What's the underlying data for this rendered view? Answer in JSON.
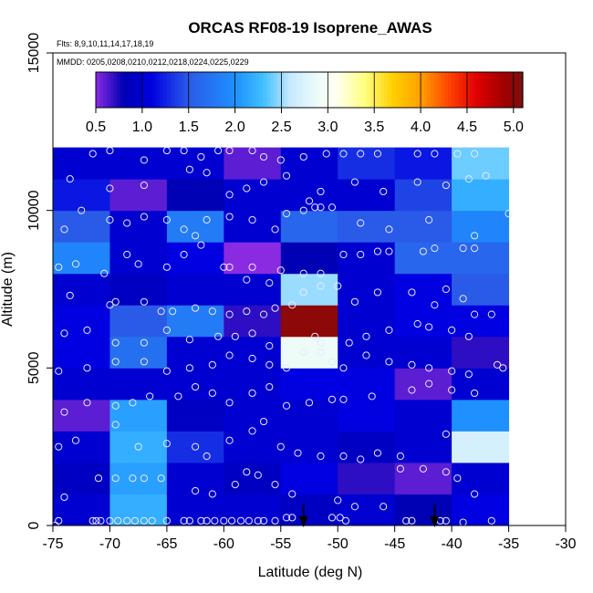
{
  "chart_data": {
    "type": "heatmap",
    "title": "ORCAS RF08-19 Isoprene_AWAS",
    "flights_note": "Flts: 8,9,10,11,14,17,18,19",
    "dates_note": "MMDD: 0205,0208,0210,0212,0218,0224,0225,0229",
    "xlabel": "Latitude (deg N)",
    "ylabel": "Altitude (m)",
    "xlim": [
      -75,
      -30
    ],
    "ylim": [
      0,
      15000
    ],
    "xticks": [
      -75,
      -70,
      -65,
      -60,
      -55,
      -50,
      -45,
      -40,
      -35,
      -30
    ],
    "yticks": [
      0,
      5000,
      10000,
      15000
    ],
    "x_edges": [
      -75,
      -70,
      -65,
      -60,
      -55,
      -50,
      -45,
      -40,
      -35
    ],
    "y_edges": [
      0,
      1000,
      2000,
      3000,
      4000,
      5000,
      6000,
      7000,
      8000,
      9000,
      10000,
      11000,
      12000
    ],
    "cell_values": [
      [
        1.0,
        2.2,
        1.0,
        1.0,
        0.9,
        1.0,
        0.8,
        1.1
      ],
      [
        0.9,
        2.1,
        1.0,
        0.9,
        1.1,
        0.7,
        0.6,
        1.0
      ],
      [
        1.0,
        2.2,
        1.3,
        1.0,
        1.0,
        0.9,
        1.0,
        2.7
      ],
      [
        0.6,
        2.1,
        0.9,
        1.0,
        1.0,
        1.1,
        1.0,
        2.0
      ],
      [
        1.0,
        1.0,
        1.0,
        1.0,
        1.1,
        1.1,
        0.6,
        1.0
      ],
      [
        1.1,
        1.7,
        1.0,
        1.0,
        2.9,
        1.0,
        1.0,
        0.7
      ],
      [
        1.1,
        1.5,
        1.8,
        0.7,
        5.0,
        1.0,
        1.1,
        1.1
      ],
      [
        1.0,
        0.9,
        1.0,
        1.0,
        2.5,
        1.0,
        1.1,
        1.5
      ],
      [
        1.9,
        1.0,
        1.1,
        0.5,
        0.8,
        1.0,
        1.6,
        1.6
      ],
      [
        1.5,
        1.0,
        1.8,
        1.0,
        1.6,
        1.5,
        1.5,
        1.9
      ],
      [
        1.2,
        0.6,
        0.8,
        1.0,
        1.0,
        1.0,
        1.4,
        2.2
      ],
      [
        1.0,
        1.0,
        1.0,
        0.6,
        1.0,
        1.3,
        1.2,
        2.4
      ]
    ],
    "colorbar": {
      "range": [
        0.5,
        5.1
      ],
      "ticks": [
        0.5,
        1.0,
        1.5,
        2.0,
        2.5,
        3.0,
        3.5,
        4.0,
        4.5,
        5.0
      ],
      "tick_labels": [
        "0.5",
        "1.0",
        "1.5",
        "2.0",
        "2.5",
        "3.0",
        "3.5",
        "4.0",
        "4.5",
        "5.0"
      ],
      "stops": [
        {
          "v": 0.5,
          "c": "#8a2be2"
        },
        {
          "v": 0.8,
          "c": "#0000b4"
        },
        {
          "v": 1.1,
          "c": "#0000e0"
        },
        {
          "v": 1.5,
          "c": "#2a5be8"
        },
        {
          "v": 2.0,
          "c": "#1e90ff"
        },
        {
          "v": 2.3,
          "c": "#3fbfff"
        },
        {
          "v": 2.6,
          "c": "#c8eaff"
        },
        {
          "v": 2.9,
          "c": "#eefcf8"
        },
        {
          "v": 3.1,
          "c": "#fffff0"
        },
        {
          "v": 3.4,
          "c": "#ffff7f"
        },
        {
          "v": 3.7,
          "c": "#ffd000"
        },
        {
          "v": 4.0,
          "c": "#ffa000"
        },
        {
          "v": 4.3,
          "c": "#ff4500"
        },
        {
          "v": 4.6,
          "c": "#e00000"
        },
        {
          "v": 4.9,
          "c": "#a00000"
        },
        {
          "v": 5.1,
          "c": "#7a1010"
        }
      ]
    },
    "arrows_at_latitude": [
      -53,
      -41.5
    ],
    "sample_points": [
      [
        -74.8,
        0
      ],
      [
        -74.5,
        150
      ],
      [
        -71.5,
        150
      ],
      [
        -71.2,
        150
      ],
      [
        -70.8,
        150
      ],
      [
        -70.0,
        150
      ],
      [
        -69.3,
        150
      ],
      [
        -68.5,
        150
      ],
      [
        -67.8,
        150
      ],
      [
        -67.0,
        150
      ],
      [
        -66.3,
        150
      ],
      [
        -65.0,
        150
      ],
      [
        -63.5,
        150
      ],
      [
        -63.0,
        150
      ],
      [
        -62.0,
        150
      ],
      [
        -61.5,
        150
      ],
      [
        -60.8,
        150
      ],
      [
        -60.0,
        150
      ],
      [
        -59.3,
        150
      ],
      [
        -58.5,
        150
      ],
      [
        -57.8,
        150
      ],
      [
        -57.0,
        150
      ],
      [
        -56.5,
        150
      ],
      [
        -55.5,
        150
      ],
      [
        -54.5,
        250
      ],
      [
        -54.0,
        250
      ],
      [
        -50.5,
        250
      ],
      [
        -49.8,
        250
      ],
      [
        -49.3,
        150
      ],
      [
        -44.0,
        150
      ],
      [
        -43.5,
        150
      ],
      [
        -41.0,
        150
      ],
      [
        -40.5,
        150
      ],
      [
        -39.0,
        100
      ],
      [
        -36.5,
        150
      ],
      [
        -74.0,
        900
      ],
      [
        -71.0,
        1500
      ],
      [
        -69.5,
        1500
      ],
      [
        -68.0,
        1500
      ],
      [
        -67.0,
        1500
      ],
      [
        -65.5,
        1500
      ],
      [
        -62.5,
        1100
      ],
      [
        -61.0,
        1000
      ],
      [
        -59.0,
        1300
      ],
      [
        -58.0,
        1700
      ],
      [
        -57.0,
        1600
      ],
      [
        -55.5,
        1300
      ],
      [
        -54.0,
        1000
      ],
      [
        -50.0,
        800
      ],
      [
        -48.5,
        600
      ],
      [
        -46.0,
        600
      ],
      [
        -44.5,
        1800
      ],
      [
        -42.5,
        1800
      ],
      [
        -40.5,
        1700
      ],
      [
        -39.5,
        1500
      ],
      [
        -38.0,
        1000
      ],
      [
        -74.5,
        2500
      ],
      [
        -73.0,
        2700
      ],
      [
        -69.5,
        3200
      ],
      [
        -67.5,
        2500
      ],
      [
        -65.0,
        2600
      ],
      [
        -62.5,
        2500
      ],
      [
        -61.5,
        2200
      ],
      [
        -59.5,
        2700
      ],
      [
        -57.5,
        3000
      ],
      [
        -56.5,
        3300
      ],
      [
        -55.0,
        2500
      ],
      [
        -53.5,
        2300
      ],
      [
        -51.5,
        2200
      ],
      [
        -49.5,
        2200
      ],
      [
        -48.0,
        2100
      ],
      [
        -46.5,
        2300
      ],
      [
        -44.5,
        2200
      ],
      [
        -40.5,
        2900
      ],
      [
        -38.5,
        2800
      ],
      [
        -74.0,
        3600
      ],
      [
        -72.0,
        3900
      ],
      [
        -69.5,
        3800
      ],
      [
        -68.0,
        3900
      ],
      [
        -66.5,
        4100
      ],
      [
        -64.0,
        4100
      ],
      [
        -62.5,
        4400
      ],
      [
        -61.0,
        4200
      ],
      [
        -59.5,
        3900
      ],
      [
        -57.5,
        4200
      ],
      [
        -56.0,
        4400
      ],
      [
        -54.5,
        3800
      ],
      [
        -52.5,
        3900
      ],
      [
        -50.5,
        4000
      ],
      [
        -49.5,
        4000
      ],
      [
        -47.0,
        4100
      ],
      [
        -43.5,
        4300
      ],
      [
        -42.0,
        4500
      ],
      [
        -40.0,
        4300
      ],
      [
        -38.0,
        4200
      ],
      [
        -74.5,
        4900
      ],
      [
        -72.0,
        5000
      ],
      [
        -69.5,
        5200
      ],
      [
        -67.0,
        5200
      ],
      [
        -65.0,
        4900
      ],
      [
        -63.0,
        5000
      ],
      [
        -61.0,
        5100
      ],
      [
        -59.5,
        5400
      ],
      [
        -57.5,
        5300
      ],
      [
        -56.0,
        5100
      ],
      [
        -54.5,
        5000
      ],
      [
        -53.0,
        5500
      ],
      [
        -51.5,
        5500
      ],
      [
        -50.5,
        5200
      ],
      [
        -49.5,
        5000
      ],
      [
        -47.5,
        5400
      ],
      [
        -45.5,
        5200
      ],
      [
        -43.5,
        5100
      ],
      [
        -42.0,
        5000
      ],
      [
        -40.0,
        4900
      ],
      [
        -38.5,
        4800
      ],
      [
        -36.0,
        5100
      ],
      [
        -35.5,
        5000
      ],
      [
        -74.0,
        6100
      ],
      [
        -72.0,
        6200
      ],
      [
        -69.5,
        5800
      ],
      [
        -67.0,
        5800
      ],
      [
        -65.0,
        6200
      ],
      [
        -63.0,
        5900
      ],
      [
        -60.5,
        6000
      ],
      [
        -59.0,
        6000
      ],
      [
        -57.5,
        6100
      ],
      [
        -56.0,
        5700
      ],
      [
        -52.0,
        6000
      ],
      [
        -51.5,
        5800
      ],
      [
        -49.0,
        5800
      ],
      [
        -47.5,
        6000
      ],
      [
        -45.5,
        6200
      ],
      [
        -43.0,
        6400
      ],
      [
        -42.0,
        6300
      ],
      [
        -40.0,
        6200
      ],
      [
        -38.5,
        6000
      ],
      [
        -36.5,
        6700
      ],
      [
        -73.5,
        7300
      ],
      [
        -70.0,
        7000
      ],
      [
        -69.5,
        7100
      ],
      [
        -67.0,
        7100
      ],
      [
        -65.5,
        6800
      ],
      [
        -64.5,
        6800
      ],
      [
        -62.5,
        6900
      ],
      [
        -61.0,
        6800
      ],
      [
        -59.5,
        6700
      ],
      [
        -58.0,
        6800
      ],
      [
        -56.5,
        6700
      ],
      [
        -55.5,
        6900
      ],
      [
        -54.0,
        7000
      ],
      [
        -53.0,
        7400
      ],
      [
        -51.5,
        7600
      ],
      [
        -50.0,
        7600
      ],
      [
        -48.5,
        7100
      ],
      [
        -46.5,
        7400
      ],
      [
        -43.5,
        7400
      ],
      [
        -41.5,
        7000
      ],
      [
        -40.5,
        7500
      ],
      [
        -39.0,
        7200
      ],
      [
        -38.0,
        6700
      ],
      [
        -74.5,
        8200
      ],
      [
        -73.0,
        8300
      ],
      [
        -70.5,
        8000
      ],
      [
        -68.5,
        8600
      ],
      [
        -67.5,
        8300
      ],
      [
        -65.0,
        8200
      ],
      [
        -63.5,
        8600
      ],
      [
        -62.0,
        8900
      ],
      [
        -60.0,
        8200
      ],
      [
        -59.5,
        8200
      ],
      [
        -58.0,
        7800
      ],
      [
        -57.5,
        8200
      ],
      [
        -56.0,
        7700
      ],
      [
        -55.0,
        8100
      ],
      [
        -53.0,
        8000
      ],
      [
        -51.5,
        8000
      ],
      [
        -49.5,
        8600
      ],
      [
        -48.0,
        8600
      ],
      [
        -46.5,
        8700
      ],
      [
        -45.5,
        8700
      ],
      [
        -42.5,
        8700
      ],
      [
        -41.5,
        8800
      ],
      [
        -39.0,
        8800
      ],
      [
        -38.0,
        8800
      ],
      [
        -74.0,
        9400
      ],
      [
        -72.5,
        10000
      ],
      [
        -70.0,
        9700
      ],
      [
        -68.5,
        9600
      ],
      [
        -67.0,
        9800
      ],
      [
        -65.0,
        9700
      ],
      [
        -63.5,
        9400
      ],
      [
        -62.5,
        9200
      ],
      [
        -61.5,
        9700
      ],
      [
        -59.5,
        9800
      ],
      [
        -57.5,
        9700
      ],
      [
        -55.5,
        9400
      ],
      [
        -54.5,
        9900
      ],
      [
        -53.0,
        10000
      ],
      [
        -52.0,
        10100
      ],
      [
        -51.5,
        10100
      ],
      [
        -50.5,
        10100
      ],
      [
        -48.0,
        9600
      ],
      [
        -45.5,
        9400
      ],
      [
        -42.0,
        9700
      ],
      [
        -38.0,
        9200
      ],
      [
        -35.0,
        9900
      ],
      [
        -73.5,
        11000
      ],
      [
        -70.0,
        10700
      ],
      [
        -67.0,
        10800
      ],
      [
        -63.0,
        11300
      ],
      [
        -61.5,
        11200
      ],
      [
        -59.5,
        10500
      ],
      [
        -58.0,
        10700
      ],
      [
        -56.5,
        10900
      ],
      [
        -54.5,
        11100
      ],
      [
        -52.5,
        10300
      ],
      [
        -51.5,
        10600
      ],
      [
        -48.5,
        10900
      ],
      [
        -46.0,
        10600
      ],
      [
        -43.0,
        10900
      ],
      [
        -40.5,
        10800
      ],
      [
        -38.5,
        11000
      ],
      [
        -37.0,
        11100
      ],
      [
        -71.5,
        11800
      ],
      [
        -70.0,
        11900
      ],
      [
        -67.0,
        11600
      ],
      [
        -65.0,
        11900
      ],
      [
        -63.5,
        11900
      ],
      [
        -62.0,
        11700
      ],
      [
        -60.5,
        11900
      ],
      [
        -59.5,
        11900
      ],
      [
        -57.5,
        11900
      ],
      [
        -56.5,
        11700
      ],
      [
        -55.0,
        11600
      ],
      [
        -53.0,
        11700
      ],
      [
        -51.0,
        11800
      ],
      [
        -49.5,
        11800
      ],
      [
        -48.0,
        11800
      ],
      [
        -46.5,
        11800
      ],
      [
        -43.0,
        11800
      ],
      [
        -41.5,
        11800
      ],
      [
        -39.5,
        11800
      ],
      [
        -38.0,
        11800
      ]
    ]
  }
}
